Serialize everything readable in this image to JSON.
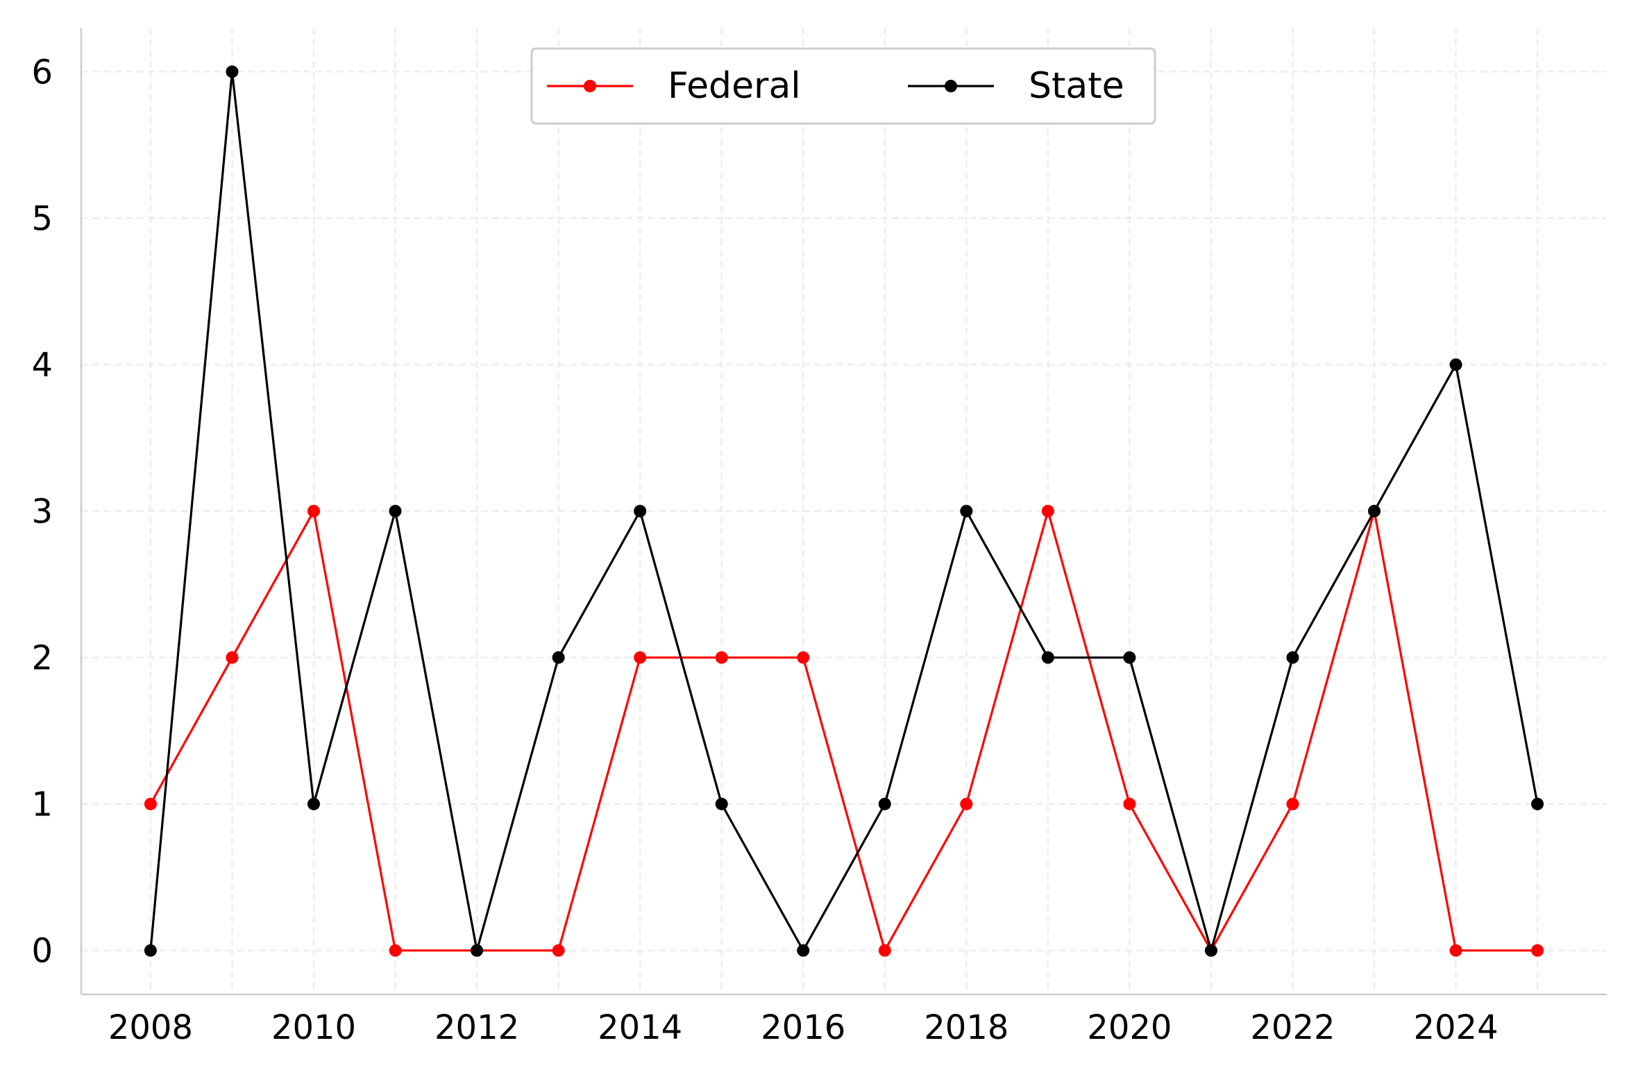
{
  "chart_data": {
    "type": "line",
    "title": "",
    "xlabel": "",
    "ylabel": "",
    "x": [
      2008,
      2009,
      2010,
      2011,
      2012,
      2013,
      2014,
      2015,
      2016,
      2017,
      2018,
      2019,
      2020,
      2021,
      2022,
      2023,
      2024,
      2025
    ],
    "xticks": [
      "2008",
      "2010",
      "2012",
      "2014",
      "2016",
      "2018",
      "2020",
      "2022",
      "2024"
    ],
    "yticks": [
      "0",
      "1",
      "2",
      "3",
      "4",
      "5",
      "6"
    ],
    "xlim": [
      2007.15,
      2025.85
    ],
    "ylim": [
      -0.3,
      6.3
    ],
    "grid": true,
    "legend_position": "top-center",
    "series": [
      {
        "name": "Federal",
        "color": "#ff0000",
        "values": [
          1,
          2,
          3,
          0,
          0,
          0,
          2,
          2,
          2,
          0,
          1,
          3,
          1,
          0,
          1,
          3,
          0,
          0
        ]
      },
      {
        "name": "State",
        "color": "#000000",
        "values": [
          0,
          6,
          1,
          3,
          0,
          2,
          3,
          1,
          0,
          1,
          3,
          2,
          2,
          0,
          2,
          3,
          4,
          1
        ]
      }
    ]
  }
}
